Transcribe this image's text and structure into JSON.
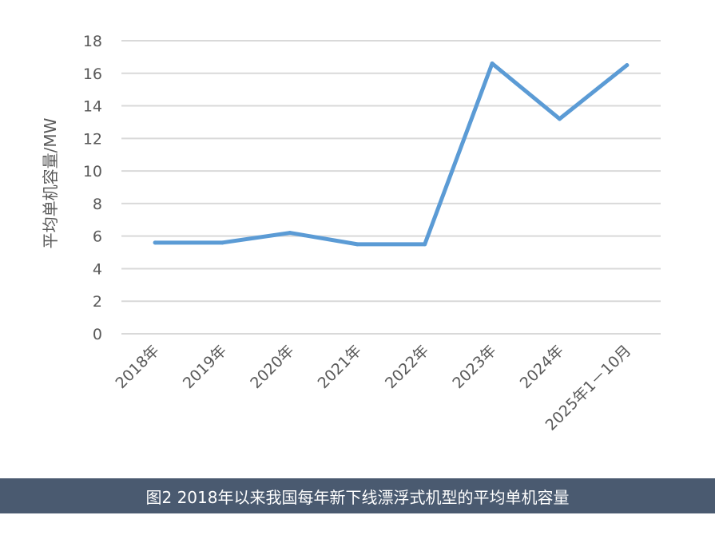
{
  "chart_data": {
    "type": "line",
    "categories": [
      "2018年",
      "2019年",
      "2020年",
      "2021年",
      "2022年",
      "2023年",
      "2024年",
      "2025年1－10月"
    ],
    "series": [
      {
        "values": [
          5.6,
          5.6,
          6.2,
          5.5,
          5.5,
          16.6,
          13.2,
          16.5
        ]
      }
    ],
    "ylabel": "平均单机容量/MW",
    "ylim": [
      0,
      18
    ],
    "yticks": [
      0,
      2,
      4,
      6,
      8,
      10,
      12,
      14,
      16,
      18
    ],
    "grid": true,
    "legend": "none",
    "line_color": "#5b9bd5",
    "grid_color": "#d9d9d9",
    "text_color": "#595959"
  },
  "caption": {
    "text": "图2 2018年以来我国每年新下线漂浮式机型的平均单机容量",
    "background": "#4a5a70"
  }
}
